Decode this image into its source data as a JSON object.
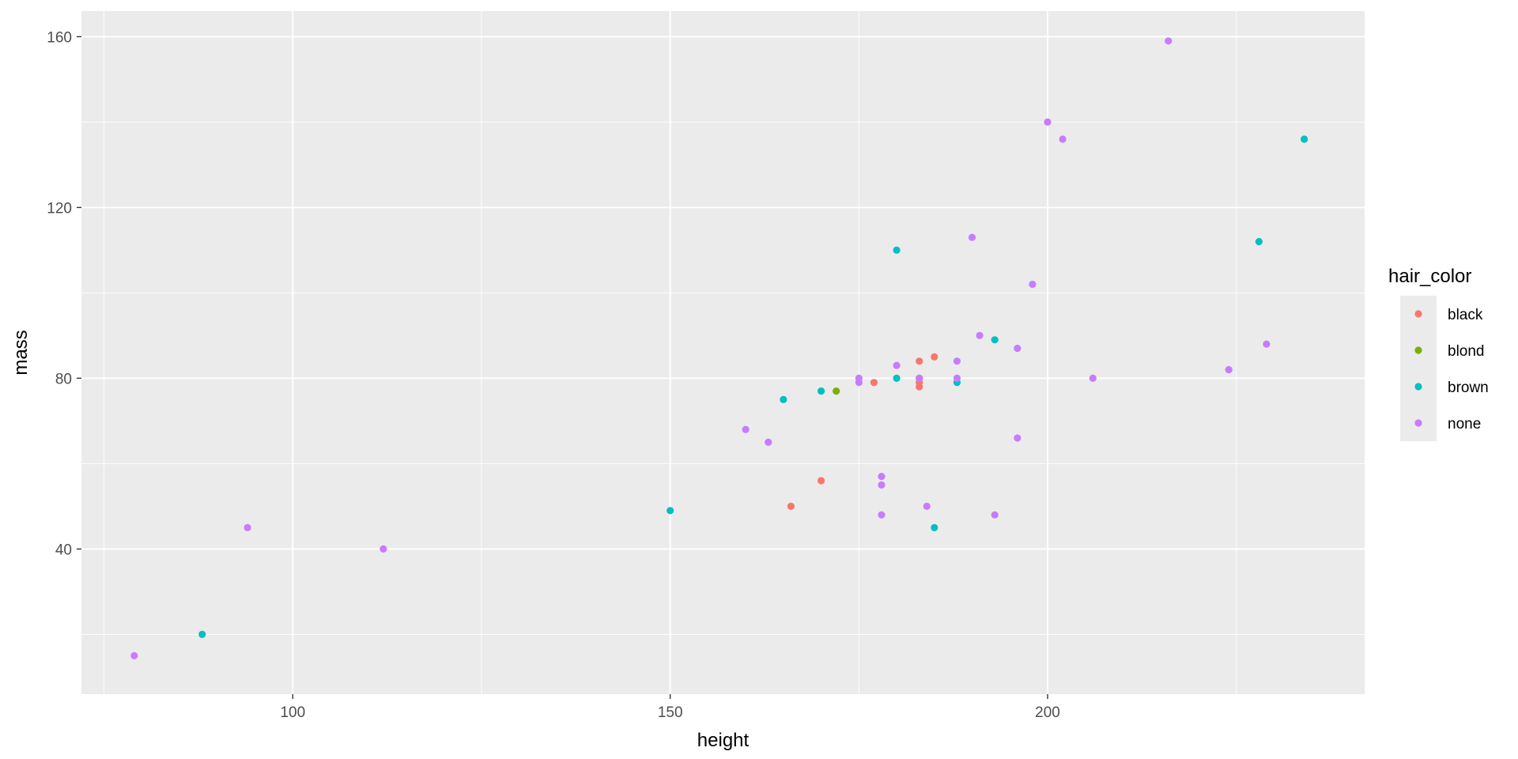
{
  "chart_data": {
    "type": "scatter",
    "title": "",
    "xlabel": "height",
    "ylabel": "mass",
    "xlim": [
      72,
      242
    ],
    "ylim": [
      6,
      166
    ],
    "x_ticks": [
      100,
      150,
      200
    ],
    "y_ticks": [
      40,
      80,
      120,
      160
    ],
    "x_tick_labels": [
      "100",
      "150",
      "200"
    ],
    "y_tick_labels": [
      "40",
      "80",
      "120",
      "160"
    ],
    "grid": true,
    "panel_background": "#EBEBEB",
    "legend": {
      "title": "hair_color",
      "placement": "right",
      "background": "#EBEBEB"
    },
    "series": [
      {
        "name": "black",
        "color": "#F8766D",
        "points": [
          [
            166,
            50
          ],
          [
            170,
            56
          ],
          [
            177,
            79
          ],
          [
            183,
            78
          ],
          [
            183,
            79
          ],
          [
            183,
            80
          ],
          [
            183,
            84
          ],
          [
            185,
            85
          ]
        ]
      },
      {
        "name": "blond",
        "color": "#7CAE00",
        "points": [
          [
            172,
            77
          ]
        ]
      },
      {
        "name": "brown",
        "color": "#00BFC4",
        "points": [
          [
            88,
            20
          ],
          [
            150,
            49
          ],
          [
            165,
            75
          ],
          [
            170,
            77
          ],
          [
            180,
            110
          ],
          [
            180,
            80
          ],
          [
            185,
            45
          ],
          [
            188,
            79
          ],
          [
            193,
            89
          ],
          [
            228,
            112
          ],
          [
            234,
            136
          ]
        ]
      },
      {
        "name": "none",
        "color": "#C77CFF",
        "points": [
          [
            79,
            15
          ],
          [
            94,
            45
          ],
          [
            112,
            40
          ],
          [
            160,
            68
          ],
          [
            163,
            65
          ],
          [
            175,
            80
          ],
          [
            175,
            79
          ],
          [
            178,
            57
          ],
          [
            178,
            55
          ],
          [
            178,
            48
          ],
          [
            180,
            83
          ],
          [
            183,
            80
          ],
          [
            184,
            50
          ],
          [
            188,
            84
          ],
          [
            188,
            80
          ],
          [
            190,
            113
          ],
          [
            191,
            90
          ],
          [
            193,
            48
          ],
          [
            196,
            87
          ],
          [
            196,
            66
          ],
          [
            198,
            102
          ],
          [
            200,
            140
          ],
          [
            202,
            136
          ],
          [
            206,
            80
          ],
          [
            216,
            159
          ],
          [
            224,
            82
          ],
          [
            229,
            88
          ]
        ]
      }
    ]
  }
}
